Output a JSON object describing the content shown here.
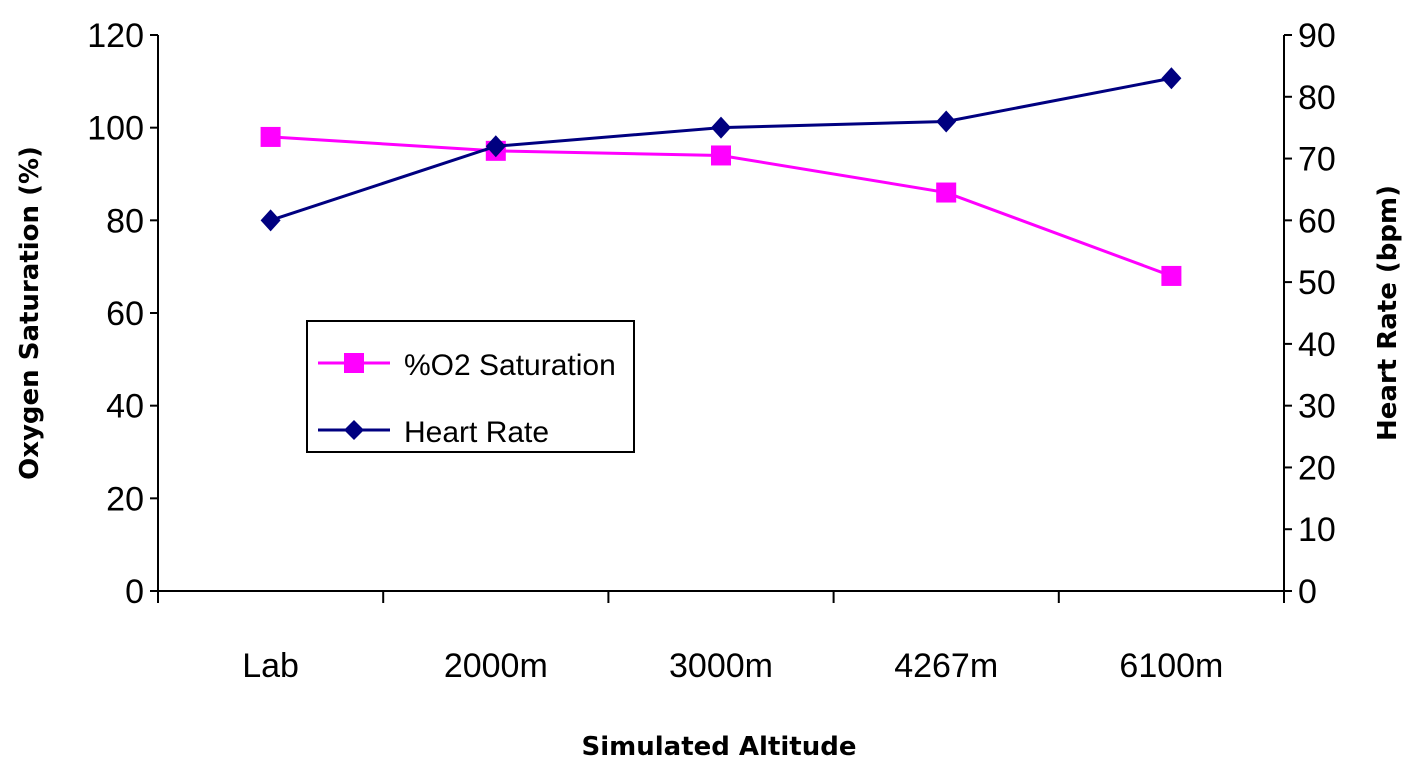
{
  "chart_data": {
    "type": "line",
    "categories": [
      "Lab",
      "2000m",
      "3000m",
      "4267m",
      "6100m"
    ],
    "xlabel": "Simulated Altitude",
    "ylabel_left": "Oxygen Saturation (%)",
    "ylabel_right": "Heart Rate (bpm)",
    "y_left": {
      "min": 0,
      "max": 120,
      "step": 20,
      "ticks": [
        "0",
        "20",
        "40",
        "60",
        "80",
        "100",
        "120"
      ]
    },
    "y_right": {
      "min": 0,
      "max": 90,
      "step": 10,
      "ticks": [
        "0",
        "10",
        "20",
        "30",
        "40",
        "50",
        "60",
        "70",
        "80",
        "90"
      ]
    },
    "grid": false,
    "legend_position": "center-left",
    "series": [
      {
        "name": "%O2 Saturation",
        "axis": "left",
        "marker": "square",
        "color": "#ff00ff",
        "values": [
          98,
          95,
          94,
          86,
          68
        ]
      },
      {
        "name": "Heart Rate",
        "axis": "right",
        "marker": "diamond",
        "color": "#000080",
        "values": [
          60,
          72,
          75,
          76,
          83
        ]
      }
    ]
  }
}
